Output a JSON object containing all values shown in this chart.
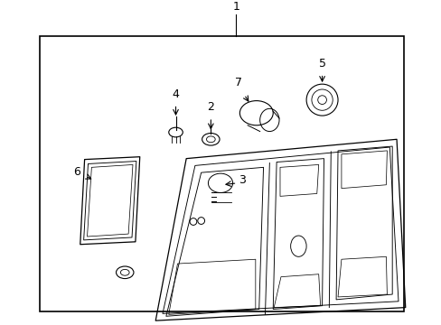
{
  "bg_color": "#ffffff",
  "line_color": "#000000",
  "label_color": "#000000",
  "border_lw": 1.2,
  "part_lw": 0.9,
  "detail_lw": 0.65,
  "label_fontsize": 9
}
